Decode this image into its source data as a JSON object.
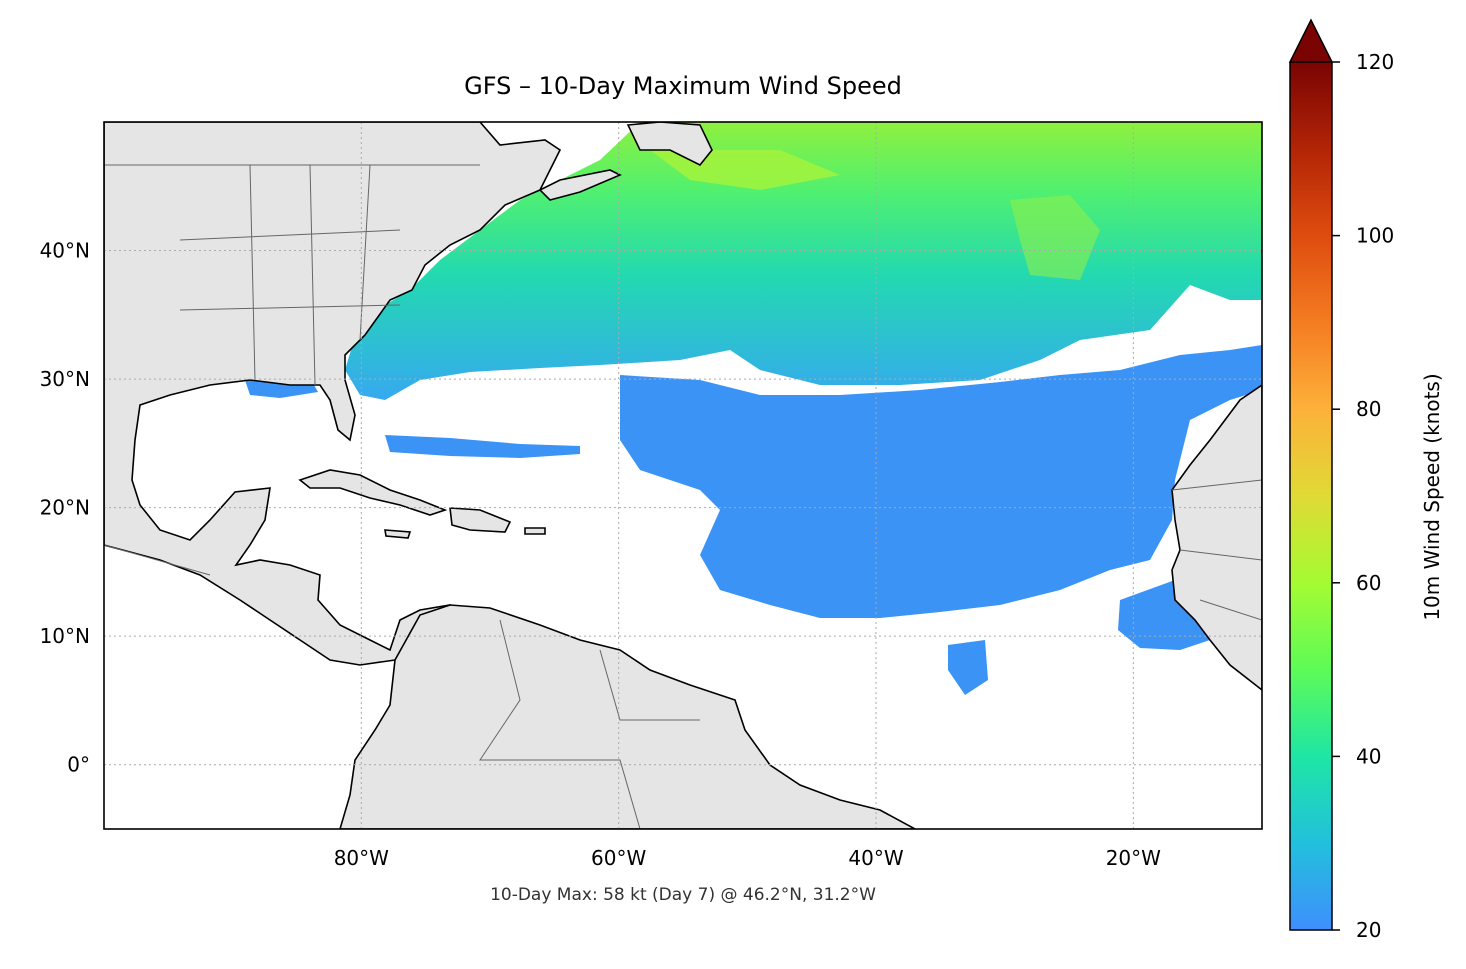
{
  "title": "GFS – 10-Day Maximum Wind Speed",
  "footnote": "10-Day Max: 58 kt (Day 7) @ 46.2°N, 31.2°W",
  "map": {
    "lon_range": [
      -100,
      -10
    ],
    "lat_range": [
      -5,
      50
    ],
    "lon_ticks": [
      {
        "value": -80,
        "label": "80°W"
      },
      {
        "value": -60,
        "label": "60°W"
      },
      {
        "value": -40,
        "label": "40°W"
      },
      {
        "value": -20,
        "label": "20°W"
      }
    ],
    "lat_ticks": [
      {
        "value": 40,
        "label": "40°N"
      },
      {
        "value": 30,
        "label": "30°N"
      },
      {
        "value": 20,
        "label": "20°N"
      },
      {
        "value": 10,
        "label": "10°N"
      },
      {
        "value": 0,
        "label": "0°"
      }
    ],
    "land_color": "#e5e5e5",
    "coast_color": "#000000"
  },
  "colorbar": {
    "label": "10m Wind Speed (knots)",
    "min": 20,
    "max": 120,
    "ticks": [
      {
        "value": 20,
        "label": "20"
      },
      {
        "value": 40,
        "label": "40"
      },
      {
        "value": 60,
        "label": "60"
      },
      {
        "value": 80,
        "label": "80"
      },
      {
        "value": 100,
        "label": "100"
      },
      {
        "value": 120,
        "label": "120"
      }
    ],
    "colors": [
      "#3f8ffd",
      "#22c0dc",
      "#1fe6a5",
      "#5dfb57",
      "#a5fb33",
      "#e0da36",
      "#fdb13a",
      "#f47c21",
      "#de4c0f",
      "#b22406",
      "#7a0403"
    ],
    "extend": "max"
  }
}
